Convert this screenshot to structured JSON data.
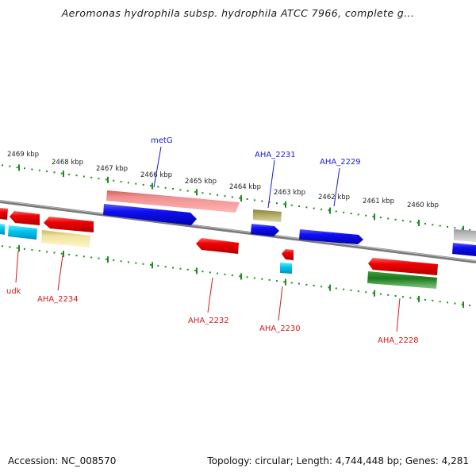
{
  "title": "Aeromonas hydrophila subsp. hydrophila ATCC 7966, complete g...",
  "footer": {
    "accession": "Accession: NC_008570",
    "topology": "Topology: circular; Length: 4,744,448 bp; Genes: 4,281"
  },
  "colors": {
    "backbone": "#8a8a8a",
    "tick": "#1f8a1f",
    "label_forward": "#1a1ad6",
    "label_reverse": "#d61a1a"
  },
  "ticks": [
    {
      "label": "2469 kbp"
    },
    {
      "label": "2468 kbp"
    },
    {
      "label": "2467 kbp"
    },
    {
      "label": "2466 kbp"
    },
    {
      "label": "2465 kbp"
    },
    {
      "label": "2464 kbp"
    },
    {
      "label": "2463 kbp"
    },
    {
      "label": "2462 kbp"
    },
    {
      "label": "2461 kbp"
    },
    {
      "label": "2460 kbp"
    }
  ],
  "genes": [
    {
      "label": "metG",
      "strand": "forward"
    },
    {
      "label": "AHA_2231",
      "strand": "forward"
    },
    {
      "label": "AHA_2229",
      "strand": "forward"
    },
    {
      "label": "udk",
      "strand": "reverse"
    },
    {
      "label": "AHA_2234",
      "strand": "reverse"
    },
    {
      "label": "AHA_2232",
      "strand": "reverse"
    },
    {
      "label": "AHA_2230",
      "strand": "reverse"
    },
    {
      "label": "AHA_2228",
      "strand": "reverse"
    }
  ]
}
